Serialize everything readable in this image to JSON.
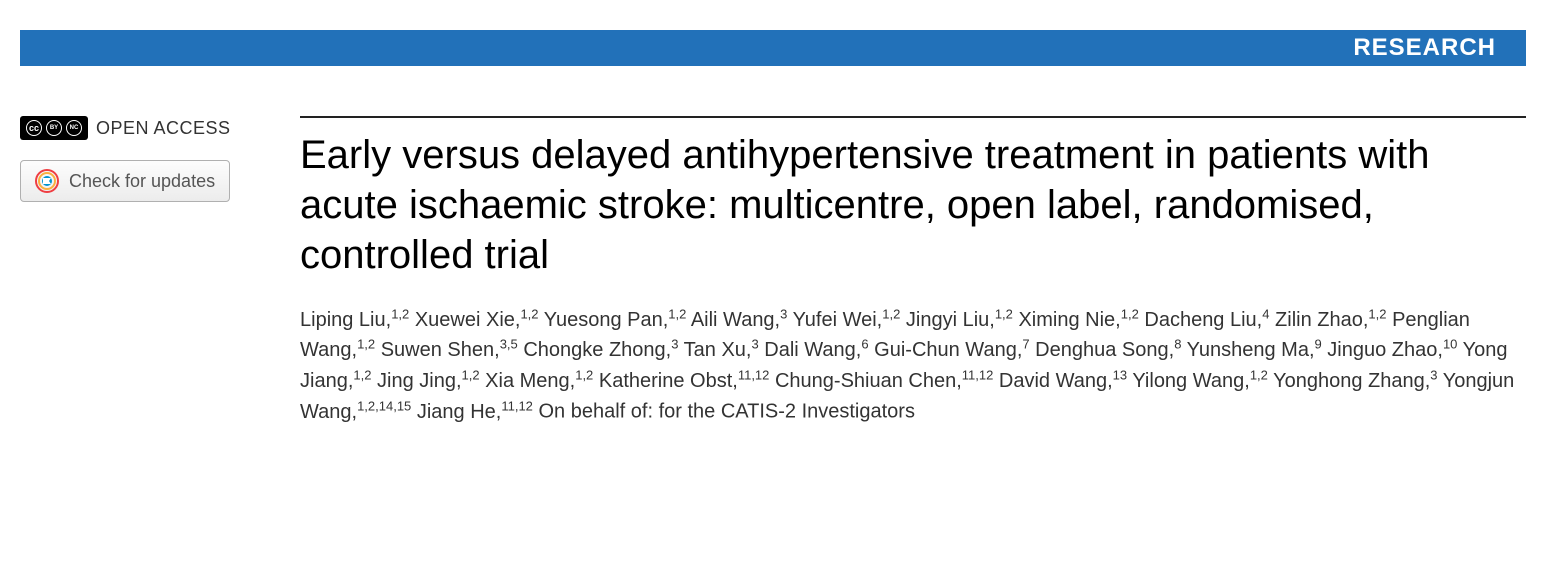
{
  "header": {
    "label": "RESEARCH",
    "bar_color": "#2271b9",
    "text_color": "#ffffff"
  },
  "sidebar": {
    "open_access_label": "OPEN ACCESS",
    "cc_glyphs": [
      "cc",
      "BY",
      "NC"
    ],
    "updates_button_label": "Check for updates"
  },
  "article": {
    "title": "Early versus delayed antihypertensive treatment in patients with acute ischaemic stroke: multicentre, open label, randomised, controlled trial",
    "title_color": "#222222",
    "title_fontsize": 40,
    "authors": [
      {
        "name": "Liping Liu",
        "affil": "1,2"
      },
      {
        "name": "Xuewei Xie",
        "affil": "1,2"
      },
      {
        "name": "Yuesong Pan",
        "affil": "1,2"
      },
      {
        "name": "Aili Wang",
        "affil": "3"
      },
      {
        "name": "Yufei Wei",
        "affil": "1,2"
      },
      {
        "name": "Jingyi Liu",
        "affil": "1,2"
      },
      {
        "name": "Ximing Nie",
        "affil": "1,2"
      },
      {
        "name": "Dacheng Liu",
        "affil": "4"
      },
      {
        "name": "Zilin Zhao",
        "affil": "1,2"
      },
      {
        "name": "Penglian Wang",
        "affil": "1,2"
      },
      {
        "name": "Suwen Shen",
        "affil": "3,5"
      },
      {
        "name": "Chongke Zhong",
        "affil": "3"
      },
      {
        "name": "Tan Xu",
        "affil": "3"
      },
      {
        "name": "Dali Wang",
        "affil": "6"
      },
      {
        "name": "Gui-Chun Wang",
        "affil": "7"
      },
      {
        "name": "Denghua Song",
        "affil": "8"
      },
      {
        "name": "Yunsheng Ma",
        "affil": "9"
      },
      {
        "name": "Jinguo Zhao",
        "affil": "10"
      },
      {
        "name": "Yong Jiang",
        "affil": "1,2"
      },
      {
        "name": "Jing Jing",
        "affil": "1,2"
      },
      {
        "name": "Xia Meng",
        "affil": "1,2"
      },
      {
        "name": "Katherine Obst",
        "affil": "11,12"
      },
      {
        "name": "Chung-Shiuan Chen",
        "affil": "11,12"
      },
      {
        "name": "David Wang",
        "affil": "13"
      },
      {
        "name": "Yilong Wang",
        "affil": "1,2"
      },
      {
        "name": "Yonghong Zhang",
        "affil": "3"
      },
      {
        "name": "Yongjun Wang",
        "affil": "1,2,14,15"
      },
      {
        "name": "Jiang He",
        "affil": "11,12"
      }
    ],
    "authors_suffix": "On behalf of: for the CATIS-2 Investigators",
    "author_fontsize": 20,
    "author_color": "#333333"
  },
  "colors": {
    "rule": "#222222",
    "background": "#ffffff",
    "button_border": "#b0b0b0",
    "button_bg_top": "#fdfdfd",
    "button_bg_bottom": "#ececec",
    "crossmark_ring_outer": "#ef3e42",
    "crossmark_ring_mid": "#fbb040",
    "crossmark_ring_inner": "#0093d0"
  }
}
